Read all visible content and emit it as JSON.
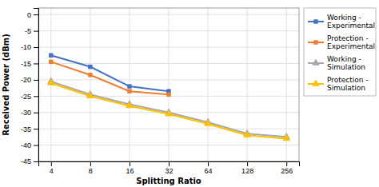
{
  "chart_data": {
    "type": "line",
    "xlabel": "Splitting Ratio",
    "ylabel": "Received Power (dBm)",
    "x": [
      4,
      8,
      16,
      32,
      64,
      128,
      256
    ],
    "series": [
      {
        "name": "Working -\nExperimental",
        "color": "#4472C4",
        "marker": "square",
        "values": [
          -12.5,
          -16.0,
          -22.0,
          -23.5,
          null,
          null,
          null
        ]
      },
      {
        "name": "Protection -\nExperimental",
        "color": "#ED7D31",
        "marker": "square",
        "values": [
          -14.5,
          -18.5,
          -23.5,
          -24.5,
          null,
          null,
          null
        ]
      },
      {
        "name": "Working -\nSimulation",
        "color": "#A9A9A9",
        "marker": "triangle",
        "values": [
          -20.5,
          -24.5,
          -27.5,
          -30.0,
          -33.0,
          -36.5,
          -37.5
        ]
      },
      {
        "name": "Protection -\nSimulation",
        "color": "#FFC000",
        "marker": "triangle",
        "values": [
          -21.0,
          -25.0,
          -28.0,
          -30.5,
          -33.5,
          -37.0,
          -38.0
        ]
      }
    ],
    "log": "x",
    "xlim": [
      3.2,
      320
    ],
    "xticks": [
      4,
      8,
      16,
      32,
      64,
      128,
      256
    ],
    "ylim": [
      -45,
      2
    ],
    "yticks": [
      0,
      -5,
      -10,
      -15,
      -20,
      -25,
      -30,
      -35,
      -40,
      -45
    ],
    "grid": true,
    "legend": "right"
  }
}
